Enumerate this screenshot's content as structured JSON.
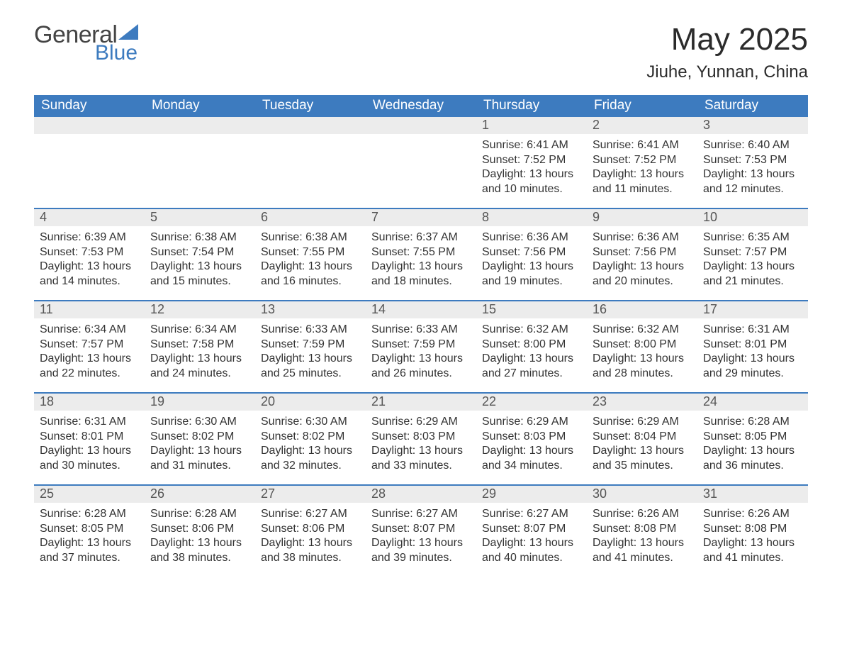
{
  "brand": {
    "word1": "General",
    "word2": "Blue",
    "word1_color": "#444444",
    "word2_color": "#3d7bbf",
    "triangle_color": "#3d7bbf"
  },
  "header": {
    "title": "May 2025",
    "location": "Jiuhe, Yunnan, China"
  },
  "style": {
    "header_bg": "#3d7bbf",
    "daynum_bg": "#ececec",
    "week_border": "#3d7bbf",
    "text_color": "#333333",
    "daynum_color": "#555555",
    "dow_text_color": "#ffffff",
    "title_fontsize": 44,
    "subtitle_fontsize": 24,
    "dow_fontsize": 19,
    "daynum_fontsize": 18,
    "body_fontsize": 16
  },
  "days_of_week": [
    "Sunday",
    "Monday",
    "Tuesday",
    "Wednesday",
    "Thursday",
    "Friday",
    "Saturday"
  ],
  "weeks": [
    [
      {
        "n": "",
        "sunrise": "",
        "sunset": "",
        "daylight": ""
      },
      {
        "n": "",
        "sunrise": "",
        "sunset": "",
        "daylight": ""
      },
      {
        "n": "",
        "sunrise": "",
        "sunset": "",
        "daylight": ""
      },
      {
        "n": "",
        "sunrise": "",
        "sunset": "",
        "daylight": ""
      },
      {
        "n": "1",
        "sunrise": "Sunrise: 6:41 AM",
        "sunset": "Sunset: 7:52 PM",
        "daylight": "Daylight: 13 hours and 10 minutes."
      },
      {
        "n": "2",
        "sunrise": "Sunrise: 6:41 AM",
        "sunset": "Sunset: 7:52 PM",
        "daylight": "Daylight: 13 hours and 11 minutes."
      },
      {
        "n": "3",
        "sunrise": "Sunrise: 6:40 AM",
        "sunset": "Sunset: 7:53 PM",
        "daylight": "Daylight: 13 hours and 12 minutes."
      }
    ],
    [
      {
        "n": "4",
        "sunrise": "Sunrise: 6:39 AM",
        "sunset": "Sunset: 7:53 PM",
        "daylight": "Daylight: 13 hours and 14 minutes."
      },
      {
        "n": "5",
        "sunrise": "Sunrise: 6:38 AM",
        "sunset": "Sunset: 7:54 PM",
        "daylight": "Daylight: 13 hours and 15 minutes."
      },
      {
        "n": "6",
        "sunrise": "Sunrise: 6:38 AM",
        "sunset": "Sunset: 7:55 PM",
        "daylight": "Daylight: 13 hours and 16 minutes."
      },
      {
        "n": "7",
        "sunrise": "Sunrise: 6:37 AM",
        "sunset": "Sunset: 7:55 PM",
        "daylight": "Daylight: 13 hours and 18 minutes."
      },
      {
        "n": "8",
        "sunrise": "Sunrise: 6:36 AM",
        "sunset": "Sunset: 7:56 PM",
        "daylight": "Daylight: 13 hours and 19 minutes."
      },
      {
        "n": "9",
        "sunrise": "Sunrise: 6:36 AM",
        "sunset": "Sunset: 7:56 PM",
        "daylight": "Daylight: 13 hours and 20 minutes."
      },
      {
        "n": "10",
        "sunrise": "Sunrise: 6:35 AM",
        "sunset": "Sunset: 7:57 PM",
        "daylight": "Daylight: 13 hours and 21 minutes."
      }
    ],
    [
      {
        "n": "11",
        "sunrise": "Sunrise: 6:34 AM",
        "sunset": "Sunset: 7:57 PM",
        "daylight": "Daylight: 13 hours and 22 minutes."
      },
      {
        "n": "12",
        "sunrise": "Sunrise: 6:34 AM",
        "sunset": "Sunset: 7:58 PM",
        "daylight": "Daylight: 13 hours and 24 minutes."
      },
      {
        "n": "13",
        "sunrise": "Sunrise: 6:33 AM",
        "sunset": "Sunset: 7:59 PM",
        "daylight": "Daylight: 13 hours and 25 minutes."
      },
      {
        "n": "14",
        "sunrise": "Sunrise: 6:33 AM",
        "sunset": "Sunset: 7:59 PM",
        "daylight": "Daylight: 13 hours and 26 minutes."
      },
      {
        "n": "15",
        "sunrise": "Sunrise: 6:32 AM",
        "sunset": "Sunset: 8:00 PM",
        "daylight": "Daylight: 13 hours and 27 minutes."
      },
      {
        "n": "16",
        "sunrise": "Sunrise: 6:32 AM",
        "sunset": "Sunset: 8:00 PM",
        "daylight": "Daylight: 13 hours and 28 minutes."
      },
      {
        "n": "17",
        "sunrise": "Sunrise: 6:31 AM",
        "sunset": "Sunset: 8:01 PM",
        "daylight": "Daylight: 13 hours and 29 minutes."
      }
    ],
    [
      {
        "n": "18",
        "sunrise": "Sunrise: 6:31 AM",
        "sunset": "Sunset: 8:01 PM",
        "daylight": "Daylight: 13 hours and 30 minutes."
      },
      {
        "n": "19",
        "sunrise": "Sunrise: 6:30 AM",
        "sunset": "Sunset: 8:02 PM",
        "daylight": "Daylight: 13 hours and 31 minutes."
      },
      {
        "n": "20",
        "sunrise": "Sunrise: 6:30 AM",
        "sunset": "Sunset: 8:02 PM",
        "daylight": "Daylight: 13 hours and 32 minutes."
      },
      {
        "n": "21",
        "sunrise": "Sunrise: 6:29 AM",
        "sunset": "Sunset: 8:03 PM",
        "daylight": "Daylight: 13 hours and 33 minutes."
      },
      {
        "n": "22",
        "sunrise": "Sunrise: 6:29 AM",
        "sunset": "Sunset: 8:03 PM",
        "daylight": "Daylight: 13 hours and 34 minutes."
      },
      {
        "n": "23",
        "sunrise": "Sunrise: 6:29 AM",
        "sunset": "Sunset: 8:04 PM",
        "daylight": "Daylight: 13 hours and 35 minutes."
      },
      {
        "n": "24",
        "sunrise": "Sunrise: 6:28 AM",
        "sunset": "Sunset: 8:05 PM",
        "daylight": "Daylight: 13 hours and 36 minutes."
      }
    ],
    [
      {
        "n": "25",
        "sunrise": "Sunrise: 6:28 AM",
        "sunset": "Sunset: 8:05 PM",
        "daylight": "Daylight: 13 hours and 37 minutes."
      },
      {
        "n": "26",
        "sunrise": "Sunrise: 6:28 AM",
        "sunset": "Sunset: 8:06 PM",
        "daylight": "Daylight: 13 hours and 38 minutes."
      },
      {
        "n": "27",
        "sunrise": "Sunrise: 6:27 AM",
        "sunset": "Sunset: 8:06 PM",
        "daylight": "Daylight: 13 hours and 38 minutes."
      },
      {
        "n": "28",
        "sunrise": "Sunrise: 6:27 AM",
        "sunset": "Sunset: 8:07 PM",
        "daylight": "Daylight: 13 hours and 39 minutes."
      },
      {
        "n": "29",
        "sunrise": "Sunrise: 6:27 AM",
        "sunset": "Sunset: 8:07 PM",
        "daylight": "Daylight: 13 hours and 40 minutes."
      },
      {
        "n": "30",
        "sunrise": "Sunrise: 6:26 AM",
        "sunset": "Sunset: 8:08 PM",
        "daylight": "Daylight: 13 hours and 41 minutes."
      },
      {
        "n": "31",
        "sunrise": "Sunrise: 6:26 AM",
        "sunset": "Sunset: 8:08 PM",
        "daylight": "Daylight: 13 hours and 41 minutes."
      }
    ]
  ]
}
